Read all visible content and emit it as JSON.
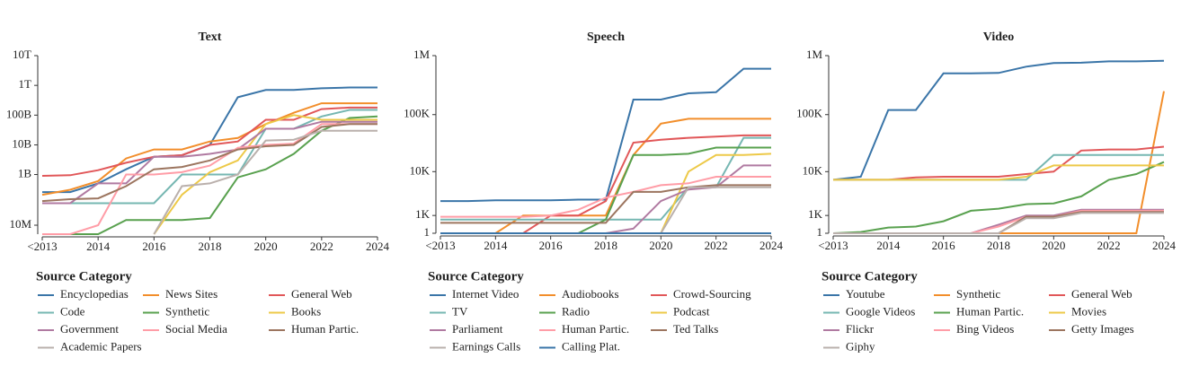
{
  "chart_data": [
    {
      "type": "line",
      "title": "Text",
      "yscale": "symlog",
      "linthresh": 10000000,
      "legend_title": "Source Category",
      "x": [
        2012,
        2013,
        2014,
        2015,
        2016,
        2017,
        2018,
        2019,
        2020,
        2021,
        2022,
        2023,
        2024
      ],
      "xlim": [
        2012,
        2024
      ],
      "xticks": [
        {
          "value": 2012,
          "label": "<2013"
        },
        2014,
        2016,
        2018,
        2020,
        2022,
        2024
      ],
      "ylim": [
        0,
        10000000000000
      ],
      "yticks": [
        {
          "value": 10000000,
          "label": "10M"
        },
        {
          "value": 1000000000,
          "label": "1B"
        },
        {
          "value": 10000000000,
          "label": "10B"
        },
        {
          "value": 100000000000,
          "label": "100B"
        },
        {
          "value": 1000000000000,
          "label": "1T"
        },
        {
          "value": 10000000000000,
          "label": "10T"
        }
      ],
      "series": [
        {
          "name": "Encyclopedias",
          "color": "#3a75a8",
          "values": [
            250000000,
            250000000,
            500000000,
            1500000000,
            4000000000,
            4500000000,
            10000000000,
            400000000000,
            700000000000,
            700000000000,
            800000000000,
            850000000000,
            850000000000
          ]
        },
        {
          "name": "News Sites",
          "color": "#f28e2b",
          "values": [
            200000000,
            300000000,
            600000000,
            3500000000,
            7000000000,
            7000000000,
            13000000000,
            17000000000,
            50000000000,
            120000000000,
            250000000000,
            250000000000,
            250000000000
          ]
        },
        {
          "name": "General Web",
          "color": "#e15759",
          "values": [
            900000000,
            950000000,
            1400000000,
            2500000000,
            4000000000,
            4500000000,
            10000000000,
            13000000000,
            70000000000,
            70000000000,
            160000000000,
            180000000000,
            180000000000
          ]
        },
        {
          "name": "Code",
          "color": "#76b7b2",
          "values": [
            100000000,
            100000000,
            100000000,
            100000000,
            100000000,
            1000000000,
            1000000000,
            1000000000,
            35000000000,
            35000000000,
            90000000000,
            150000000000,
            150000000000
          ]
        },
        {
          "name": "Synthetic",
          "color": "#59a14f",
          "values": [
            0,
            0,
            0,
            20000000,
            20000000,
            20000000,
            25000000,
            800000000,
            1500000000,
            5000000000,
            30000000000,
            80000000000,
            90000000000
          ]
        },
        {
          "name": "Books",
          "color": "#edc948",
          "values": [
            null,
            null,
            null,
            null,
            0,
            200000000,
            1200000000,
            3000000000,
            50000000000,
            100000000000,
            70000000000,
            70000000000,
            70000000000
          ]
        },
        {
          "name": "Government",
          "color": "#b07aa1",
          "values": [
            100000000,
            100000000,
            500000000,
            500000000,
            4000000000,
            4000000000,
            5000000000,
            7000000000,
            35000000000,
            35000000000,
            60000000000,
            60000000000,
            60000000000
          ]
        },
        {
          "name": "Social Media",
          "color": "#ff9da7",
          "values": [
            0,
            0,
            10000000,
            1000000000,
            1000000000,
            1200000000,
            2000000000,
            8000000000,
            10000000000,
            11000000000,
            50000000000,
            50000000000,
            50000000000
          ]
        },
        {
          "name": "Human Partic.",
          "color": "#9c755f",
          "values": [
            120000000,
            140000000,
            150000000,
            400000000,
            1500000000,
            1800000000,
            3000000000,
            7000000000,
            9000000000,
            10000000000,
            40000000000,
            50000000000,
            50000000000
          ]
        },
        {
          "name": "Academic Papers",
          "color": "#bab0ac",
          "values": [
            null,
            null,
            null,
            null,
            0,
            400000000,
            500000000,
            1000000000,
            14000000000,
            15000000000,
            30000000000,
            30000000000,
            30000000000
          ]
        }
      ]
    },
    {
      "type": "line",
      "title": "Speech",
      "yscale": "symlog",
      "linthresh": 1000,
      "legend_title": "Source Category",
      "x": [
        2012,
        2013,
        2014,
        2015,
        2016,
        2017,
        2018,
        2019,
        2020,
        2021,
        2022,
        2023,
        2024
      ],
      "xlim": [
        2012,
        2024
      ],
      "xticks": [
        {
          "value": 2012,
          "label": "<2013"
        },
        2014,
        2016,
        2018,
        2020,
        2022,
        2024
      ],
      "ylim": [
        1,
        1000000
      ],
      "yticks": [
        1,
        {
          "value": 1000,
          "label": "1K"
        },
        {
          "value": 10000,
          "label": "10K"
        },
        {
          "value": 100000,
          "label": "100K"
        },
        {
          "value": 1000000,
          "label": "1M"
        }
      ],
      "series": [
        {
          "name": "Internet Video",
          "color": "#3a75a8",
          "values": [
            2500,
            2500,
            2600,
            2600,
            2600,
            2700,
            2700,
            180000,
            180000,
            230000,
            240000,
            600000,
            600000
          ]
        },
        {
          "name": "Audiobooks",
          "color": "#f28e2b",
          "values": [
            0,
            0,
            0,
            1000,
            1000,
            1000,
            1000,
            20000,
            70000,
            85000,
            85000,
            85000,
            85000
          ]
        },
        {
          "name": "Crowd-Sourcing",
          "color": "#e15759",
          "values": [
            0,
            0,
            0,
            0,
            1000,
            1000,
            2500,
            33000,
            37000,
            40000,
            42000,
            44000,
            44000
          ]
        },
        {
          "name": "TV",
          "color": "#76b7b2",
          "values": [
            700,
            700,
            700,
            700,
            700,
            700,
            700,
            700,
            700,
            5000,
            5000,
            40000,
            40000
          ]
        },
        {
          "name": "Radio",
          "color": "#59a14f",
          "values": [
            0,
            0,
            0,
            0,
            0,
            0,
            700,
            20000,
            20000,
            21000,
            27000,
            27000,
            27000
          ]
        },
        {
          "name": "Podcast",
          "color": "#edc948",
          "values": [
            0,
            0,
            0,
            0,
            0,
            0,
            0,
            0,
            0,
            10000,
            20000,
            20000,
            21000
          ]
        },
        {
          "name": "Parliament",
          "color": "#b07aa1",
          "values": [
            0,
            0,
            0,
            0,
            0,
            0,
            0,
            200,
            2500,
            4500,
            5000,
            13000,
            13000
          ]
        },
        {
          "name": "Human Partic.",
          "color": "#ff9da7",
          "values": [
            900,
            900,
            900,
            900,
            1000,
            1500,
            3000,
            4000,
            5500,
            6000,
            8000,
            8000,
            8000
          ]
        },
        {
          "name": "Ted Talks",
          "color": "#9c755f",
          "values": [
            500,
            500,
            500,
            500,
            500,
            500,
            500,
            4000,
            4000,
            5000,
            5500,
            5500,
            5500
          ]
        },
        {
          "name": "Earnings Calls",
          "color": "#bab0ac",
          "values": [
            0,
            0,
            0,
            0,
            0,
            0,
            0,
            0,
            0,
            5000,
            5000,
            5000,
            5000
          ]
        },
        {
          "name": "Calling Plat.",
          "color": "#3a75a8",
          "values": [
            0,
            0,
            0,
            0,
            0,
            0,
            0,
            0,
            0,
            0,
            0,
            0,
            0
          ]
        }
      ]
    },
    {
      "type": "line",
      "title": "Video",
      "yscale": "symlog",
      "linthresh": 1000,
      "legend_title": "Source Category",
      "x": [
        2012,
        2013,
        2014,
        2015,
        2016,
        2017,
        2018,
        2019,
        2020,
        2021,
        2022,
        2023,
        2024
      ],
      "xlim": [
        2012,
        2024
      ],
      "xticks": [
        {
          "value": 2012,
          "label": "<2013"
        },
        2014,
        2016,
        2018,
        2020,
        2022,
        2024
      ],
      "ylim": [
        1,
        1000000
      ],
      "yticks": [
        1,
        {
          "value": 1000,
          "label": "1K"
        },
        {
          "value": 10000,
          "label": "10K"
        },
        {
          "value": 100000,
          "label": "100K"
        },
        {
          "value": 1000000,
          "label": "1M"
        }
      ],
      "series": [
        {
          "name": "Youtube",
          "color": "#3a75a8",
          "values": [
            7000,
            8000,
            120000,
            120000,
            500000,
            500000,
            510000,
            650000,
            750000,
            760000,
            800000,
            800000,
            820000
          ]
        },
        {
          "name": "Synthetic",
          "color": "#f28e2b",
          "values": [
            0,
            0,
            0,
            0,
            0,
            0,
            0,
            0,
            0,
            0,
            0,
            0,
            250000
          ]
        },
        {
          "name": "General Web",
          "color": "#e15759",
          "values": [
            7000,
            7000,
            7000,
            7800,
            8000,
            8000,
            8000,
            9000,
            10000,
            24000,
            25000,
            25000,
            28000
          ]
        },
        {
          "name": "Google Videos",
          "color": "#76b7b2",
          "values": [
            7000,
            7000,
            7000,
            7000,
            7000,
            7000,
            7000,
            7000,
            20000,
            20000,
            20000,
            20000,
            20000
          ]
        },
        {
          "name": "Human Partic.",
          "color": "#59a14f",
          "values": [
            0,
            50,
            250,
            300,
            600,
            1400,
            1600,
            2100,
            2200,
            3200,
            7000,
            9000,
            15000
          ]
        },
        {
          "name": "Movies",
          "color": "#edc948",
          "values": [
            7000,
            7000,
            7000,
            7000,
            7000,
            7000,
            7000,
            8000,
            13000,
            13000,
            13000,
            13000,
            13000
          ]
        },
        {
          "name": "Flickr",
          "color": "#b07aa1",
          "values": [
            0,
            0,
            0,
            0,
            0,
            0,
            400,
            1000,
            1000,
            1500,
            1500,
            1500,
            1500
          ]
        },
        {
          "name": "Bing Videos",
          "color": "#ff9da7",
          "values": [
            0,
            0,
            0,
            0,
            0,
            0,
            300,
            900,
            900,
            1400,
            1400,
            1400,
            1400
          ]
        },
        {
          "name": "Getty Images",
          "color": "#9c755f",
          "values": [
            0,
            0,
            0,
            0,
            0,
            0,
            0,
            900,
            900,
            1300,
            1300,
            1300,
            1300
          ]
        },
        {
          "name": "Giphy",
          "color": "#bab0ac",
          "values": [
            0,
            0,
            0,
            0,
            0,
            0,
            0,
            800,
            800,
            1200,
            1200,
            1200,
            1200
          ]
        }
      ]
    }
  ]
}
